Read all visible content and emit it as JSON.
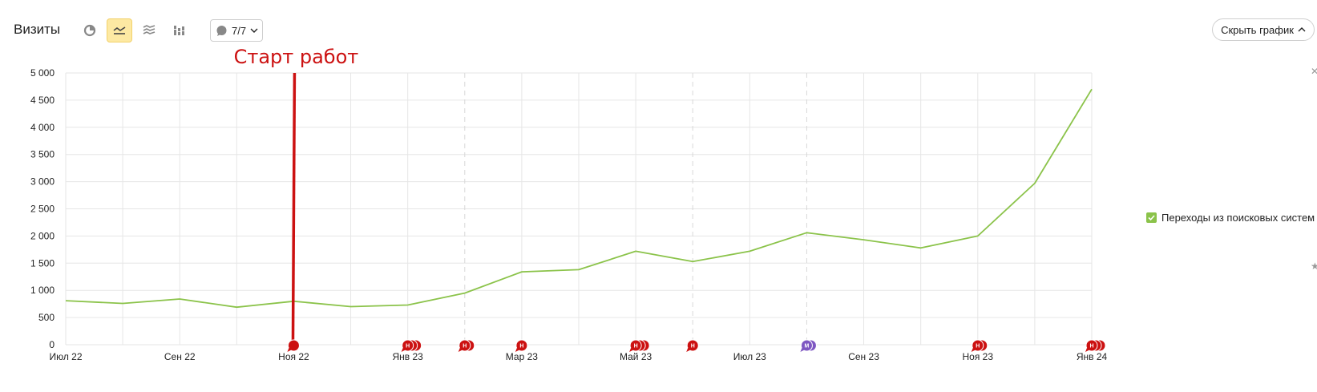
{
  "toolbar": {
    "title": "Визиты",
    "buttons": [
      {
        "name": "pie-chart-button",
        "icon": "pie-chart-icon",
        "active": false
      },
      {
        "name": "line-chart-button",
        "icon": "line-chart-icon",
        "active": true
      },
      {
        "name": "area-chart-button",
        "icon": "area-chart-icon",
        "active": false
      },
      {
        "name": "bar-chart-button",
        "icon": "bar-chart-icon",
        "active": false
      }
    ],
    "notes_count": "7/7",
    "notes_icon": "speech-bubble-icon",
    "hide_chart_label": "Скрыть график",
    "hide_chart_icon": "chevron-up-icon"
  },
  "legend": {
    "label": "Переходы из поисковых систем",
    "checked": true,
    "color": "#8bc34a"
  },
  "chart_data": {
    "type": "line",
    "x": [
      "2022-07",
      "2022-08",
      "2022-09",
      "2022-10",
      "2022-11",
      "2022-12",
      "2023-01",
      "2023-02",
      "2023-03",
      "2023-04",
      "2023-05",
      "2023-06",
      "2023-07",
      "2023-08",
      "2023-09",
      "2023-10",
      "2023-11",
      "2023-12",
      "2024-01"
    ],
    "series": [
      {
        "name": "Переходы из поисковых систем",
        "color": "#8bc34a",
        "values": [
          810,
          760,
          840,
          690,
          800,
          700,
          730,
          950,
          1340,
          1380,
          1720,
          1530,
          1720,
          2060,
          1930,
          1780,
          2000,
          2970,
          4700
        ]
      }
    ],
    "x_tick_labels": [
      "Июл 22",
      "Сен 22",
      "Ноя 22",
      "Янв 23",
      "Мар 23",
      "Май 23",
      "Июл 23",
      "Сен 23",
      "Ноя 23",
      "Янв 24"
    ],
    "x_tick_index": [
      0,
      2,
      4,
      6,
      8,
      10,
      12,
      14,
      16,
      18
    ],
    "y_ticks": [
      0,
      500,
      1000,
      1500,
      2000,
      2500,
      3000,
      3500,
      4000,
      4500,
      5000
    ],
    "y_tick_labels": [
      "0",
      "500",
      "1 000",
      "1 500",
      "2 000",
      "2 500",
      "3 000",
      "3 500",
      "4 000",
      "4 500",
      "5 000"
    ],
    "ylim": [
      0,
      5000
    ],
    "grid": true,
    "dashed_x_index": [
      7,
      11,
      13
    ],
    "annotation": {
      "text": "Старт работ",
      "x_index": 4,
      "color": "#cc1111"
    },
    "markers": [
      {
        "x_index": 4,
        "label": "",
        "color": "#cc1111",
        "count": 1
      },
      {
        "x_index": 6,
        "label": "Н",
        "color": "#cc1111",
        "count": 3
      },
      {
        "x_index": 7,
        "label": "Н",
        "color": "#cc1111",
        "count": 2
      },
      {
        "x_index": 8,
        "label": "Н",
        "color": "#cc1111",
        "count": 1
      },
      {
        "x_index": 10,
        "label": "Н",
        "color": "#cc1111",
        "count": 3
      },
      {
        "x_index": 11,
        "label": "Н",
        "color": "#cc1111",
        "count": 1
      },
      {
        "x_index": 13,
        "label": "М",
        "color": "#7e57c2",
        "count": 2
      },
      {
        "x_index": 16,
        "label": "Н",
        "color": "#cc1111",
        "count": 2
      },
      {
        "x_index": 18,
        "label": "Н",
        "color": "#cc1111",
        "count": 3
      }
    ]
  }
}
